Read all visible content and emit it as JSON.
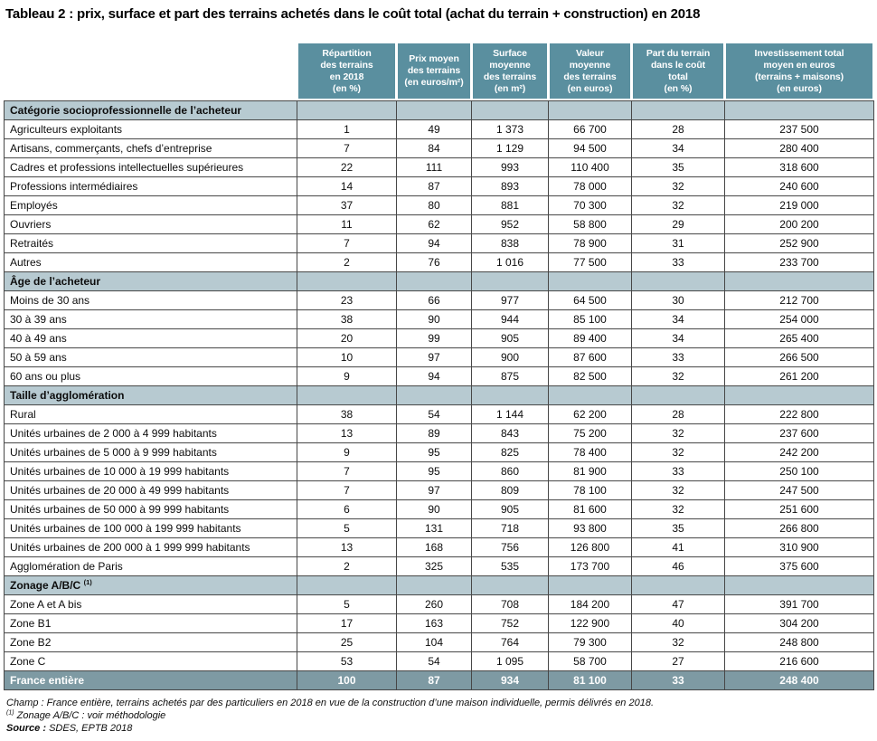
{
  "title": "Tableau 2 : prix, surface et part des terrains achetés dans le coût total (achat du terrain + construction) en 2018",
  "colors": {
    "header_bg": "#5a8f9f",
    "section_bg": "#b7cad1",
    "total_bg": "#7e9aa3",
    "border": "#474747"
  },
  "table": {
    "columns": [
      "Répartition\ndes terrains\nen 2018\n(en %)",
      "Prix moyen\ndes terrains\n(en euros/m²)",
      "Surface\nmoyenne\ndes terrains\n(en m²)",
      "Valeur\nmoyenne\ndes terrains\n(en euros)",
      "Part du terrain\ndans le coût\ntotal\n(en %)",
      "Investissement total\nmoyen en euros\n(terrains + maisons)\n(en euros)"
    ],
    "sections": [
      {
        "header": "Catégorie socioprofessionnelle de l’acheteur",
        "rows": [
          {
            "label": "Agriculteurs exploitants",
            "values": [
              "1",
              "49",
              "1 373",
              "66 700",
              "28",
              "237 500"
            ]
          },
          {
            "label": "Artisans, commerçants, chefs d’entreprise",
            "values": [
              "7",
              "84",
              "1 129",
              "94 500",
              "34",
              "280 400"
            ]
          },
          {
            "label": "Cadres et professions intellectuelles supérieures",
            "values": [
              "22",
              "111",
              "993",
              "110 400",
              "35",
              "318 600"
            ]
          },
          {
            "label": "Professions intermédiaires",
            "values": [
              "14",
              "87",
              "893",
              "78 000",
              "32",
              "240 600"
            ]
          },
          {
            "label": "Employés",
            "values": [
              "37",
              "80",
              "881",
              "70 300",
              "32",
              "219 000"
            ]
          },
          {
            "label": "Ouvriers",
            "values": [
              "11",
              "62",
              "952",
              "58 800",
              "29",
              "200 200"
            ]
          },
          {
            "label": "Retraités",
            "values": [
              "7",
              "94",
              "838",
              "78 900",
              "31",
              "252 900"
            ]
          },
          {
            "label": "Autres",
            "values": [
              "2",
              "76",
              "1 016",
              "77 500",
              "33",
              "233 700"
            ]
          }
        ]
      },
      {
        "header": "Âge de l’acheteur",
        "rows": [
          {
            "label": "Moins de 30 ans",
            "values": [
              "23",
              "66",
              "977",
              "64 500",
              "30",
              "212 700"
            ]
          },
          {
            "label": "30 à 39 ans",
            "values": [
              "38",
              "90",
              "944",
              "85 100",
              "34",
              "254 000"
            ]
          },
          {
            "label": "40 à 49 ans",
            "values": [
              "20",
              "99",
              "905",
              "89 400",
              "34",
              "265 400"
            ]
          },
          {
            "label": "50 à 59 ans",
            "values": [
              "10",
              "97",
              "900",
              "87 600",
              "33",
              "266 500"
            ]
          },
          {
            "label": "60 ans ou plus",
            "values": [
              "9",
              "94",
              "875",
              "82 500",
              "32",
              "261 200"
            ]
          }
        ]
      },
      {
        "header": "Taille d’agglomération",
        "rows": [
          {
            "label": "Rural",
            "values": [
              "38",
              "54",
              "1 144",
              "62 200",
              "28",
              "222 800"
            ]
          },
          {
            "label": "Unités urbaines de 2 000 à 4 999 habitants",
            "values": [
              "13",
              "89",
              "843",
              "75 200",
              "32",
              "237 600"
            ]
          },
          {
            "label": "Unités urbaines de 5 000 à 9 999 habitants",
            "values": [
              "9",
              "95",
              "825",
              "78 400",
              "32",
              "242 200"
            ]
          },
          {
            "label": "Unités urbaines de 10 000 à 19 999 habitants",
            "values": [
              "7",
              "95",
              "860",
              "81 900",
              "33",
              "250 100"
            ]
          },
          {
            "label": "Unités urbaines de 20 000 à 49 999 habitants",
            "values": [
              "7",
              "97",
              "809",
              "78 100",
              "32",
              "247 500"
            ]
          },
          {
            "label": "Unités urbaines de 50 000 à 99 999 habitants",
            "values": [
              "6",
              "90",
              "905",
              "81 600",
              "32",
              "251 600"
            ]
          },
          {
            "label": "Unités urbaines de 100 000 à 199 999 habitants",
            "values": [
              "5",
              "131",
              "718",
              "93 800",
              "35",
              "266 800"
            ]
          },
          {
            "label": "Unités urbaines de 200 000 à 1 999 999 habitants",
            "values": [
              "13",
              "168",
              "756",
              "126 800",
              "41",
              "310 900"
            ]
          },
          {
            "label": "Agglomération de Paris",
            "values": [
              "2",
              "325",
              "535",
              "173 700",
              "46",
              "375 600"
            ]
          }
        ]
      },
      {
        "header": "Zonage A/B/C",
        "sup": "(1)",
        "rows": [
          {
            "label": "Zone A et A bis",
            "values": [
              "5",
              "260",
              "708",
              "184 200",
              "47",
              "391 700"
            ]
          },
          {
            "label": "Zone B1",
            "values": [
              "17",
              "163",
              "752",
              "122 900",
              "40",
              "304 200"
            ]
          },
          {
            "label": "Zone B2",
            "values": [
              "25",
              "104",
              "764",
              "79 300",
              "32",
              "248 800"
            ]
          },
          {
            "label": "Zone C",
            "values": [
              "53",
              "54",
              "1 095",
              "58 700",
              "27",
              "216 600"
            ]
          }
        ]
      }
    ],
    "total": {
      "label": "France entière",
      "values": [
        "100",
        "87",
        "934",
        "81 100",
        "33",
        "248 400"
      ]
    }
  },
  "footnotes": {
    "champ": "Champ : France entière, terrains achetés par des particuliers en 2018 en vue de la construction d’une maison individuelle, permis délivrés en 2018.",
    "zonage_sup": "(1)",
    "zonage_text": " Zonage A/B/C : voir méthodologie",
    "source_label": "Source :",
    "source_text": " SDES, EPTB 2018"
  }
}
